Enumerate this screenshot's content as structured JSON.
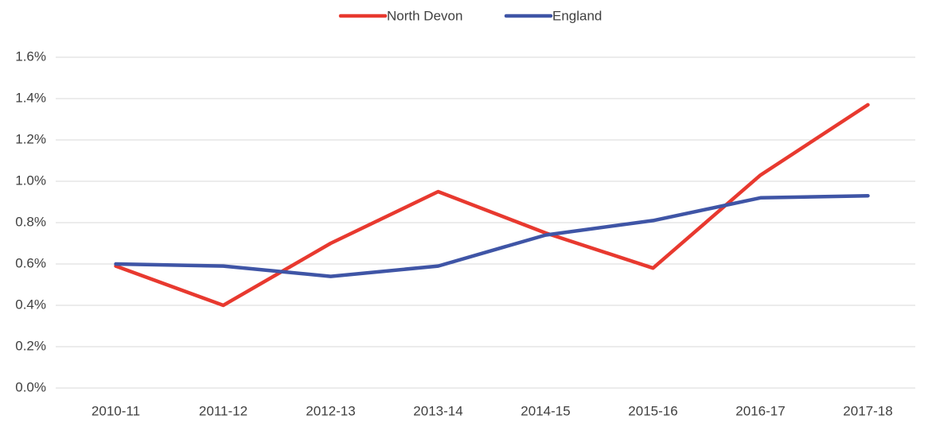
{
  "chart_data": {
    "type": "line",
    "categories": [
      "2010-11",
      "2011-12",
      "2012-13",
      "2013-14",
      "2014-15",
      "2015-16",
      "2016-17",
      "2017-18"
    ],
    "series": [
      {
        "name": "North Devon",
        "color": "#e8392f",
        "values": [
          0.59,
          0.4,
          0.7,
          0.95,
          0.75,
          0.58,
          1.03,
          1.37
        ]
      },
      {
        "name": "England",
        "color": "#3f55a6",
        "values": [
          0.6,
          0.59,
          0.54,
          0.59,
          0.74,
          0.81,
          0.92,
          0.93
        ]
      }
    ],
    "ylim": [
      0,
      1.6
    ],
    "yticks": [
      {
        "value": 0,
        "label": "0.0%"
      },
      {
        "value": 0.2,
        "label": "0.2%"
      },
      {
        "value": 0.4,
        "label": "0.4%"
      },
      {
        "value": 0.6,
        "label": "0.6%"
      },
      {
        "value": 0.8,
        "label": "0.8%"
      },
      {
        "value": 1.0,
        "label": "1.0%"
      },
      {
        "value": 1.2,
        "label": "1.2%"
      },
      {
        "value": 1.4,
        "label": "1.4%"
      },
      {
        "value": 1.6,
        "label": "1.6%"
      }
    ],
    "grid": true,
    "legend": "top"
  }
}
